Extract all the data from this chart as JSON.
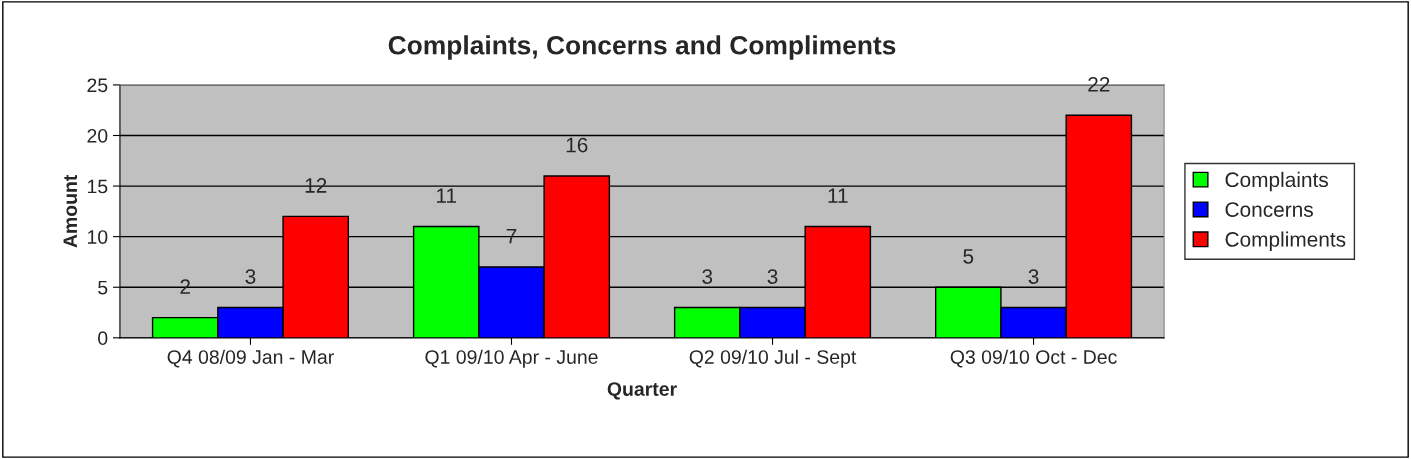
{
  "chart_data": {
    "type": "bar",
    "title": "Complaints, Concerns and Compliments",
    "xlabel": "Quarter",
    "ylabel": "Amount",
    "categories": [
      "Q4 08/09 Jan - Mar",
      "Q1 09/10 Apr - June",
      "Q2 09/10 Jul - Sept",
      "Q3 09/10 Oct - Dec"
    ],
    "series": [
      {
        "name": "Complaints",
        "color": "#00ff00",
        "values": [
          2,
          11,
          3,
          5
        ]
      },
      {
        "name": "Concerns",
        "color": "#0000ff",
        "values": [
          3,
          7,
          3,
          3
        ]
      },
      {
        "name": "Compliments",
        "color": "#ff0000",
        "values": [
          12,
          16,
          11,
          22
        ]
      }
    ],
    "ylim": [
      0,
      25
    ],
    "yticks": [
      0,
      5,
      10,
      15,
      20,
      25
    ],
    "grid": "y",
    "legend": "right",
    "data_labels": true
  }
}
